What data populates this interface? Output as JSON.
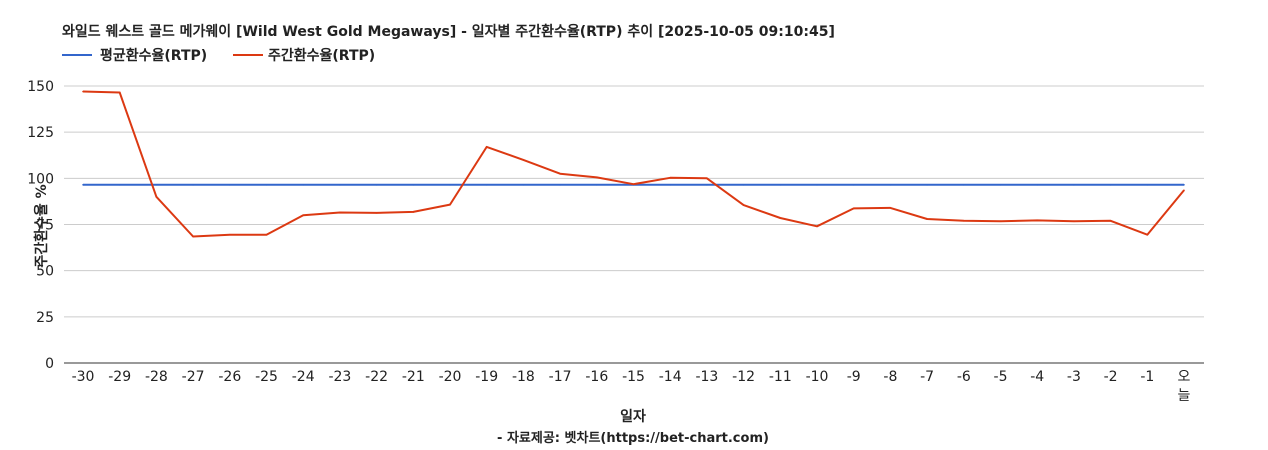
{
  "chart_data": {
    "type": "line",
    "title": "와일드 웨스트 골드 메가웨이 [Wild West Gold Megaways] - 일자별 주간환수율(RTP) 추이 [2025-10-05 09:10:45]",
    "xlabel": "일자",
    "ylabel": "주간환수율 %",
    "ylim": [
      0,
      150
    ],
    "yticks": [
      0,
      25,
      50,
      75,
      100,
      125,
      150
    ],
    "grid": true,
    "legend_position": "top-left",
    "categories": [
      "-30",
      "-29",
      "-28",
      "-27",
      "-26",
      "-25",
      "-24",
      "-23",
      "-22",
      "-21",
      "-20",
      "-19",
      "-18",
      "-17",
      "-16",
      "-15",
      "-14",
      "-13",
      "-12",
      "-11",
      "-10",
      "-9",
      "-8",
      "-7",
      "-6",
      "-5",
      "-4",
      "-3",
      "-2",
      "-1",
      "오\n늘"
    ],
    "series": [
      {
        "name": "평균환수율(RTP)",
        "color": "#3366cc",
        "values": [
          96.5,
          96.5,
          96.5,
          96.5,
          96.5,
          96.5,
          96.5,
          96.5,
          96.5,
          96.5,
          96.5,
          96.5,
          96.5,
          96.5,
          96.5,
          96.5,
          96.5,
          96.5,
          96.5,
          96.5,
          96.5,
          96.5,
          96.5,
          96.5,
          96.5,
          96.5,
          96.5,
          96.5,
          96.5,
          96.5,
          96.5
        ]
      },
      {
        "name": "주간환수율(RTP)",
        "color": "#dc3912",
        "values": [
          147,
          146.5,
          90,
          68.5,
          69.5,
          69.5,
          80,
          81.5,
          81.3,
          81.8,
          85.8,
          117,
          110,
          102.5,
          100.5,
          96.8,
          100.3,
          100,
          85.5,
          78.5,
          74,
          83.7,
          84,
          78,
          77,
          76.8,
          77.2,
          76.8,
          77,
          69.5,
          93.5
        ]
      }
    ],
    "footer": "- 자료제공: 벳차트(https://bet-chart.com)"
  }
}
